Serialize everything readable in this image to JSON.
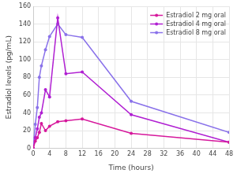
{
  "chart_data": {
    "type": "line",
    "x_label": "Time (hours)",
    "y_label": "Estradiol levels (pg/mL)",
    "x": [
      0,
      0.5,
      1,
      1.5,
      2,
      3,
      4,
      6,
      8,
      12,
      24,
      48
    ],
    "series": [
      {
        "name": "Estradiol 2 mg oral",
        "color": "#d6189c",
        "values": [
          0,
          8,
          12,
          18,
          28,
          20,
          25,
          30,
          31,
          33,
          17,
          7
        ]
      },
      {
        "name": "Estradiol 4 mg oral",
        "color": "#b01fd2",
        "values": [
          0,
          12,
          22,
          35,
          40,
          66,
          58,
          147,
          84,
          86,
          38,
          7
        ]
      },
      {
        "name": "Estradiol 8 mg oral",
        "color": "#8a72ea",
        "values": [
          0,
          27,
          46,
          80,
          93,
          111,
          126,
          140,
          128,
          125,
          53,
          18
        ]
      }
    ],
    "xlim": [
      0,
      48
    ],
    "xticks": [
      0,
      4,
      8,
      12,
      16,
      20,
      24,
      28,
      32,
      36,
      40,
      44,
      48
    ],
    "ylim": [
      0,
      160
    ],
    "yticks": [
      0,
      20,
      40,
      60,
      80,
      100,
      120,
      140,
      160
    ],
    "grid": true,
    "legend": "top right",
    "marker": "circle"
  }
}
